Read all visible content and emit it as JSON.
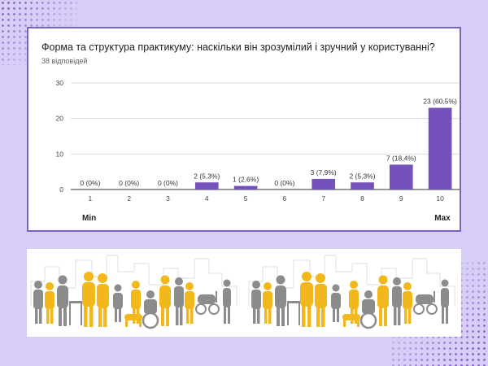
{
  "card": {
    "title": "Форма та структура практикуму: наскільки він зрозумілий і зручний у користуванні?",
    "subtitle": "38 відповідей"
  },
  "colors": {
    "background": "#d8cdf6",
    "accent": "#7a63c8",
    "bar": "#7451bb",
    "people_yellow": "#f2b71b",
    "people_gray": "#8c8c8c"
  },
  "chart_data": {
    "type": "bar",
    "categories": [
      "1",
      "2",
      "3",
      "4",
      "5",
      "6",
      "7",
      "8",
      "9",
      "10"
    ],
    "values": [
      0,
      0,
      0,
      2,
      1,
      0,
      3,
      2,
      7,
      23
    ],
    "data_labels": [
      "0 (0%)",
      "0 (0%)",
      "0 (0%)",
      "2 (5,3%)",
      "1 (2,6%)",
      "0 (0%)",
      "3 (7,9%)",
      "2 (5,3%)",
      "7 (18,4%)",
      "23 (60,5%)"
    ],
    "ylim": [
      0,
      30
    ],
    "yticks": [
      0,
      10,
      20,
      30
    ],
    "grid": true,
    "min_label": "Min",
    "max_label": "Max"
  },
  "illustration": {
    "icon": "people-crowd-illustration"
  }
}
